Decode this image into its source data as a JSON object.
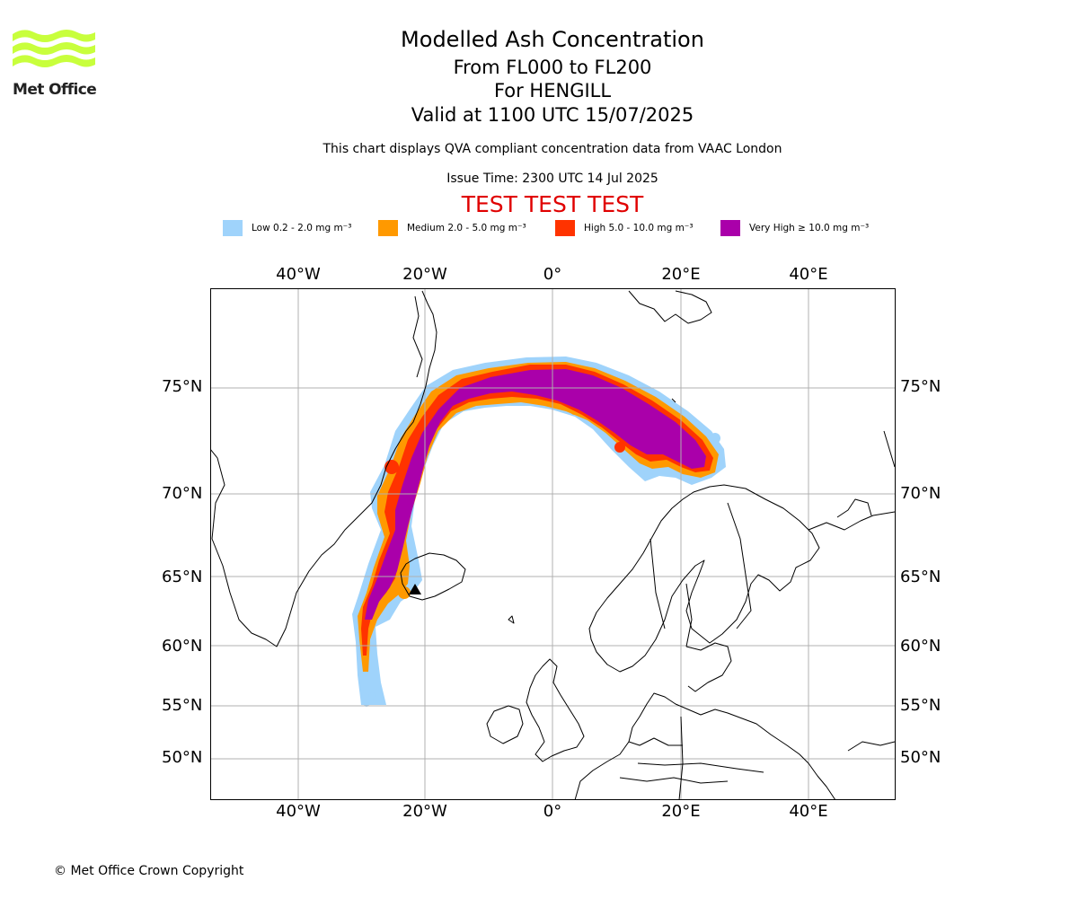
{
  "logo": {
    "text": "Met Office",
    "colors": {
      "waves": "#c8ff3c",
      "text": "#222222"
    }
  },
  "title": "Modelled Ash Concentration",
  "subtitle_levels": "From FL000 to FL200",
  "subtitle_volcano": "For HENGILL",
  "subtitle_valid": "Valid at 1100 UTC 15/07/2025",
  "note": "This chart displays QVA compliant concentration data from VAAC London",
  "issue_time": "Issue Time: 2300 UTC 14 Jul 2025",
  "test_banner": "TEST TEST TEST",
  "legend": [
    {
      "label": "Low 0.2 - 2.0 mg m⁻³",
      "color": "#9fd3fb"
    },
    {
      "label": "Medium 2.0 - 5.0 mg m⁻³",
      "color": "#ff9900"
    },
    {
      "label": "High 5.0 - 10.0 mg m⁻³",
      "color": "#ff3300"
    },
    {
      "label": "Very High ≥ 10.0 mg m⁻³",
      "color": "#aa00aa"
    }
  ],
  "map": {
    "longitude_labels": [
      "40°W",
      "20°W",
      "0°",
      "20°E",
      "40°E"
    ],
    "latitude_labels": [
      "75°N",
      "70°N",
      "65°N",
      "60°N",
      "55°N",
      "50°N"
    ],
    "volcano_marker": "triangle",
    "gridlines": true
  },
  "copyright": "© Met Office Crown Copyright"
}
